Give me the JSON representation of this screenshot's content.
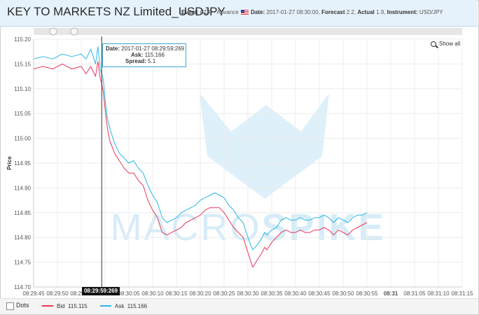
{
  "header": {
    "title": "KEY TO MARKETS NZ Limited_USDJPY",
    "event_label": "Event:",
    "event_value": "GDP - Advance",
    "flag_icon": "us-flag-icon",
    "date_label": "Date:",
    "date_value": "2017-01-27 08:30:00,",
    "forecast_label": "Forecast",
    "forecast_value": "2.2,",
    "actual_label": "Actual",
    "actual_value": "1.9,",
    "instrument_label": "Instrument:",
    "instrument_value": "USD/JPY"
  },
  "controls": {
    "show_all_label": "Show all",
    "show_all_icon": "zoom-out-icon"
  },
  "tooltip": {
    "date_label": "Date:",
    "date_value": "2017-01-27 08:29:59:269",
    "ask_label": "Ask:",
    "ask_value": "115.166",
    "spread_label": "Spread:",
    "spread_value": "5.1"
  },
  "crosshair_label": "08:29:59:269",
  "footer": {
    "dots_label": "Dots",
    "dots_checked": false
  },
  "legend": [
    {
      "name": "Bid",
      "value": "115.115",
      "color": "#e8375a"
    },
    {
      "name": "Ask",
      "value": "115.166",
      "color": "#2cb5e8"
    }
  ],
  "watermark": {
    "text_light": "MACRO",
    "text_bold": "SPIKE",
    "color": "#d6ecf8"
  },
  "chart_data": {
    "type": "line",
    "title": "",
    "xlabel": "",
    "ylabel": "Price",
    "ylim": [
      114.7,
      115.2
    ],
    "yticks": [
      "115.20",
      "115.15",
      "115.10",
      "115.05",
      "115.00",
      "114.95",
      "114.90",
      "114.85",
      "114.80",
      "114.75",
      "114.70"
    ],
    "xticks": [
      "08:29:45",
      "08:29:50",
      "08:29:55",
      "08:30:00",
      "08:30:05",
      "08:30:10",
      "08:30:15",
      "08:30:20",
      "08:30:25",
      "08:30:30",
      "08:30:35",
      "08:30:40",
      "08:30:45",
      "08:30:50",
      "08:30:55",
      "08:31",
      "08:31:05",
      "08:31:10",
      "08:31:15"
    ],
    "x_unit": "seconds after 08:29:45",
    "grid": true,
    "series": [
      {
        "name": "Ask",
        "color": "#2cb5e8",
        "x": [
          0,
          2,
          4,
          6,
          8,
          10,
          11,
          12,
          13,
          13.5,
          14,
          14.3,
          14.6,
          15,
          15.5,
          16,
          17,
          18,
          19,
          20,
          21,
          22,
          23,
          24,
          25,
          26,
          27,
          28,
          29,
          30,
          31,
          32,
          33,
          34,
          35,
          36,
          37,
          38,
          39,
          40,
          41,
          42,
          43,
          44,
          45,
          46,
          47,
          48,
          48.5,
          49,
          50,
          51,
          52,
          53,
          54,
          55,
          56,
          57,
          58,
          59,
          60,
          61,
          62,
          63,
          64,
          65,
          66,
          67,
          68,
          69,
          70
        ],
        "values": [
          115.16,
          115.165,
          115.16,
          115.17,
          115.165,
          115.17,
          115.16,
          115.18,
          115.15,
          115.185,
          115.14,
          115.13,
          115.12,
          115.08,
          115.04,
          115.02,
          114.99,
          114.97,
          114.96,
          114.95,
          114.955,
          114.94,
          114.93,
          114.905,
          114.885,
          114.87,
          114.84,
          114.83,
          114.835,
          114.84,
          114.85,
          114.855,
          114.86,
          114.865,
          114.875,
          114.88,
          114.885,
          114.89,
          114.885,
          114.88,
          114.865,
          114.855,
          114.84,
          114.83,
          114.8,
          114.775,
          114.785,
          114.8,
          114.81,
          114.805,
          114.815,
          114.82,
          114.835,
          114.84,
          114.835,
          114.835,
          114.84,
          114.835,
          114.835,
          114.84,
          114.84,
          114.845,
          114.84,
          114.83,
          114.84,
          114.835,
          114.83,
          114.84,
          114.845,
          114.845,
          114.85
        ]
      },
      {
        "name": "Bid",
        "color": "#e8375a",
        "x": [
          0,
          2,
          4,
          6,
          8,
          10,
          11,
          12,
          13,
          13.5,
          14,
          14.3,
          14.6,
          15,
          15.5,
          16,
          17,
          18,
          19,
          20,
          21,
          22,
          23,
          24,
          25,
          26,
          27,
          28,
          29,
          30,
          31,
          32,
          33,
          34,
          35,
          36,
          37,
          38,
          39,
          40,
          41,
          42,
          43,
          44,
          45,
          46,
          47,
          48,
          48.5,
          49,
          50,
          51,
          52,
          53,
          54,
          55,
          56,
          57,
          58,
          59,
          60,
          61,
          62,
          63,
          64,
          65,
          66,
          67,
          68,
          69,
          70
        ],
        "values": [
          115.14,
          115.145,
          115.14,
          115.15,
          115.14,
          115.145,
          115.13,
          115.145,
          115.125,
          115.155,
          115.12,
          115.11,
          115.095,
          115.06,
          115.02,
          114.995,
          114.97,
          114.955,
          114.94,
          114.93,
          114.93,
          114.915,
          114.905,
          114.875,
          114.855,
          114.84,
          114.81,
          114.805,
          114.81,
          114.815,
          114.82,
          114.83,
          114.835,
          114.84,
          114.845,
          114.855,
          114.86,
          114.86,
          114.86,
          114.85,
          114.835,
          114.82,
          114.81,
          114.8,
          114.77,
          114.74,
          114.755,
          114.77,
          114.78,
          114.775,
          114.79,
          114.8,
          114.81,
          114.815,
          114.81,
          114.81,
          114.815,
          114.81,
          114.81,
          114.815,
          114.815,
          114.82,
          114.815,
          114.805,
          114.815,
          114.81,
          114.805,
          114.815,
          114.82,
          114.825,
          114.83
        ]
      }
    ]
  }
}
